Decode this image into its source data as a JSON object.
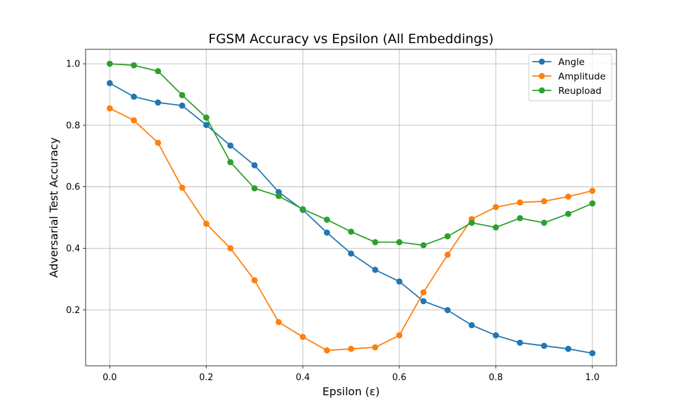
{
  "chart_data": {
    "type": "line",
    "title": "FGSM Accuracy vs Epsilon (All Embeddings)",
    "xlabel": "Epsilon (ε)",
    "ylabel": "Adversarial Test Accuracy",
    "xlim": [
      -0.05,
      1.05
    ],
    "ylim": [
      0.018,
      1.047
    ],
    "xticks": [
      "0.0",
      "0.2",
      "0.4",
      "0.6",
      "0.8",
      "1.0"
    ],
    "yticks": [
      "0.2",
      "0.4",
      "0.6",
      "0.8",
      "1.0"
    ],
    "grid": true,
    "legend_position": "top-right",
    "x": [
      0.0,
      0.05,
      0.1,
      0.15,
      0.2,
      0.25,
      0.3,
      0.35,
      0.4,
      0.45,
      0.5,
      0.55,
      0.6,
      0.65,
      0.7,
      0.75,
      0.8,
      0.85,
      0.9,
      0.95,
      1.0
    ],
    "series": [
      {
        "name": "Angle",
        "color": "#1f77b4",
        "values": [
          0.937,
          0.893,
          0.874,
          0.864,
          0.801,
          0.734,
          0.67,
          0.583,
          0.525,
          0.451,
          0.383,
          0.33,
          0.292,
          0.228,
          0.199,
          0.15,
          0.117,
          0.093,
          0.083,
          0.073,
          0.059
        ]
      },
      {
        "name": "Amplitude",
        "color": "#ff7f0e",
        "values": [
          0.855,
          0.816,
          0.743,
          0.597,
          0.48,
          0.4,
          0.296,
          0.16,
          0.112,
          0.068,
          0.073,
          0.078,
          0.117,
          0.257,
          0.379,
          0.495,
          0.534,
          0.549,
          0.553,
          0.568,
          0.587
        ]
      },
      {
        "name": "Reupload",
        "color": "#2ca02c",
        "values": [
          1.0,
          0.995,
          0.976,
          0.898,
          0.825,
          0.68,
          0.595,
          0.57,
          0.527,
          0.493,
          0.454,
          0.42,
          0.42,
          0.41,
          0.439,
          0.483,
          0.468,
          0.498,
          0.483,
          0.512,
          0.546
        ]
      }
    ]
  }
}
